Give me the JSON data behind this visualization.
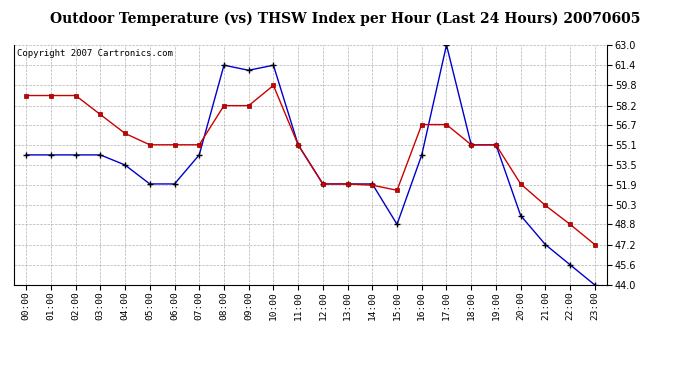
{
  "title": "Outdoor Temperature (vs) THSW Index per Hour (Last 24 Hours) 20070605",
  "copyright": "Copyright 2007 Cartronics.com",
  "hours": [
    0,
    1,
    2,
    3,
    4,
    5,
    6,
    7,
    8,
    9,
    10,
    11,
    12,
    13,
    14,
    15,
    16,
    17,
    18,
    19,
    20,
    21,
    22,
    23
  ],
  "hour_labels": [
    "00:00",
    "01:00",
    "02:00",
    "03:00",
    "04:00",
    "05:00",
    "06:00",
    "07:00",
    "08:00",
    "09:00",
    "10:00",
    "11:00",
    "12:00",
    "13:00",
    "14:00",
    "15:00",
    "16:00",
    "17:00",
    "18:00",
    "19:00",
    "20:00",
    "21:00",
    "22:00",
    "23:00"
  ],
  "temp_red": [
    59.0,
    59.0,
    59.0,
    57.5,
    56.0,
    55.1,
    55.1,
    55.1,
    58.2,
    58.2,
    59.8,
    55.1,
    52.0,
    52.0,
    51.9,
    51.5,
    56.7,
    56.7,
    55.1,
    55.1,
    52.0,
    50.3,
    48.8,
    47.2
  ],
  "thsw_blue": [
    54.3,
    54.3,
    54.3,
    54.3,
    53.5,
    52.0,
    52.0,
    54.3,
    61.4,
    61.0,
    61.4,
    55.1,
    52.0,
    52.0,
    52.0,
    48.8,
    54.3,
    63.0,
    55.1,
    55.1,
    49.5,
    47.2,
    45.6,
    44.0
  ],
  "ylim_min": 44.0,
  "ylim_max": 63.0,
  "yticks": [
    44.0,
    45.6,
    47.2,
    48.8,
    50.3,
    51.9,
    53.5,
    55.1,
    56.7,
    58.2,
    59.8,
    61.4,
    63.0
  ],
  "red_color": "#cc0000",
  "blue_color": "#0000cc",
  "bg_color": "#ffffff",
  "plot_bg_color": "#ffffff",
  "grid_color": "#aaaaaa",
  "title_fontsize": 10,
  "copyright_fontsize": 6.5
}
